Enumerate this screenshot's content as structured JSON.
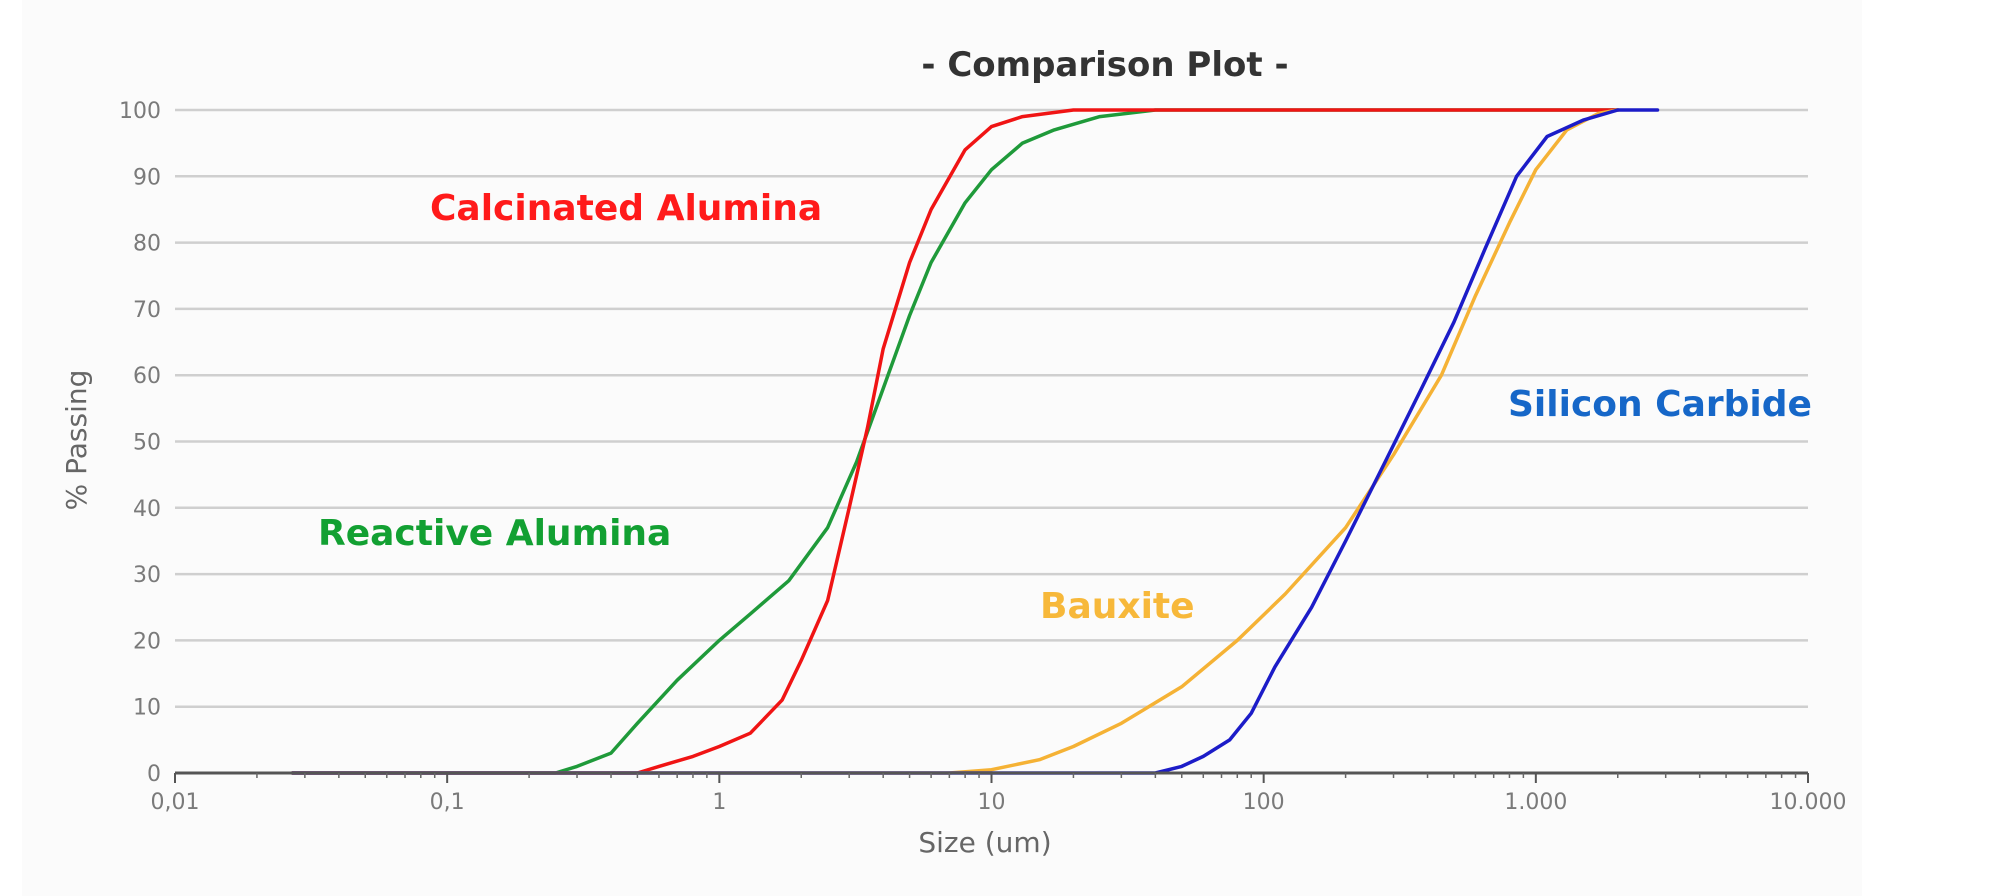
{
  "chart_data": {
    "type": "line",
    "title": "- Comparison Plot -",
    "xlabel": "Size (um)",
    "ylabel": "% Passing",
    "x_scale": "log",
    "xlim": [
      0.01,
      10000
    ],
    "ylim": [
      0,
      100
    ],
    "grid": "horizontal",
    "x_ticks": [
      {
        "value": 0.01,
        "label": "0,01"
      },
      {
        "value": 0.1,
        "label": "0,1"
      },
      {
        "value": 1,
        "label": "1"
      },
      {
        "value": 10,
        "label": "10"
      },
      {
        "value": 100,
        "label": "100"
      },
      {
        "value": 1000,
        "label": "1.000"
      },
      {
        "value": 10000,
        "label": "10.000"
      }
    ],
    "y_ticks": [
      0,
      10,
      20,
      30,
      40,
      50,
      60,
      70,
      80,
      90,
      100
    ],
    "series": [
      {
        "name": "Reactive Alumina",
        "color": "#1f9a3a",
        "points": [
          [
            0.027,
            0
          ],
          [
            0.25,
            0
          ],
          [
            0.3,
            1
          ],
          [
            0.4,
            3
          ],
          [
            0.5,
            7.5
          ],
          [
            0.7,
            14
          ],
          [
            1,
            20
          ],
          [
            1.3,
            24
          ],
          [
            1.8,
            29
          ],
          [
            2.5,
            37
          ],
          [
            3.2,
            47
          ],
          [
            4,
            58
          ],
          [
            5,
            69
          ],
          [
            6,
            77
          ],
          [
            8,
            86
          ],
          [
            10,
            91
          ],
          [
            13,
            95
          ],
          [
            17,
            97
          ],
          [
            25,
            99
          ],
          [
            40,
            100
          ],
          [
            100,
            100
          ],
          [
            1000,
            100
          ],
          [
            2000,
            100
          ]
        ]
      },
      {
        "name": "Calcinated Alumina",
        "color": "#f01414",
        "points": [
          [
            0.027,
            0
          ],
          [
            0.5,
            0
          ],
          [
            0.6,
            1
          ],
          [
            0.8,
            2.5
          ],
          [
            1,
            4
          ],
          [
            1.3,
            6
          ],
          [
            1.7,
            11
          ],
          [
            2,
            17
          ],
          [
            2.5,
            26
          ],
          [
            3,
            40
          ],
          [
            3.5,
            52
          ],
          [
            4,
            64
          ],
          [
            5,
            77
          ],
          [
            6,
            85
          ],
          [
            8,
            94
          ],
          [
            10,
            97.5
          ],
          [
            13,
            99
          ],
          [
            20,
            100
          ],
          [
            40,
            100
          ],
          [
            100,
            100
          ],
          [
            2000,
            100
          ]
        ]
      },
      {
        "name": "Bauxite",
        "color": "#f5b235",
        "points": [
          [
            0.027,
            0
          ],
          [
            7,
            0
          ],
          [
            10,
            0.5
          ],
          [
            15,
            2
          ],
          [
            20,
            4
          ],
          [
            30,
            7.5
          ],
          [
            50,
            13
          ],
          [
            80,
            20
          ],
          [
            120,
            27
          ],
          [
            200,
            37
          ],
          [
            300,
            48
          ],
          [
            450,
            60
          ],
          [
            600,
            72
          ],
          [
            800,
            83
          ],
          [
            1000,
            91
          ],
          [
            1300,
            97
          ],
          [
            1700,
            99.5
          ],
          [
            2000,
            100
          ]
        ]
      },
      {
        "name": "Silicon Carbide",
        "color": "#1c1cc8",
        "points": [
          [
            0.027,
            0
          ],
          [
            40,
            0
          ],
          [
            50,
            1
          ],
          [
            60,
            2.5
          ],
          [
            75,
            5
          ],
          [
            90,
            9
          ],
          [
            110,
            16
          ],
          [
            150,
            25
          ],
          [
            200,
            35
          ],
          [
            280,
            47
          ],
          [
            380,
            58
          ],
          [
            500,
            68
          ],
          [
            650,
            79
          ],
          [
            850,
            90
          ],
          [
            1100,
            96
          ],
          [
            1500,
            98.5
          ],
          [
            2000,
            100
          ],
          [
            2800,
            100
          ]
        ]
      }
    ],
    "annotations": [
      {
        "text": "Calcinated Alumina",
        "color": "#ff1a1a"
      },
      {
        "text": "Reactive Alumina",
        "color": "#12a032"
      },
      {
        "text": "Bauxite",
        "color": "#f7b83a"
      },
      {
        "text": "Silicon Carbide",
        "color": "#1667c8"
      }
    ]
  }
}
